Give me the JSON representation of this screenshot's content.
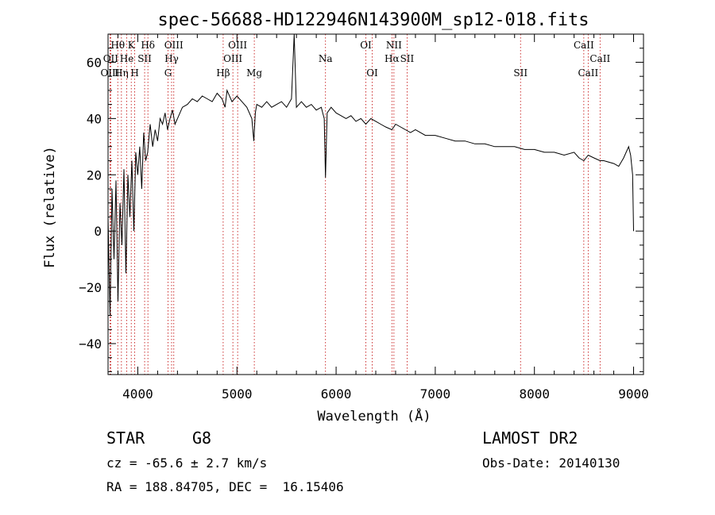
{
  "chart_data": {
    "type": "line",
    "title": "spec-56688-HD122946N143900M_sp12-018.fits",
    "xlabel": "Wavelength (Å)",
    "ylabel": "Flux (relative)",
    "xlim": [
      3700,
      9100
    ],
    "ylim": [
      -51,
      70
    ],
    "x_ticks": [
      4000,
      5000,
      6000,
      7000,
      8000,
      9000
    ],
    "y_ticks": [
      -40,
      -20,
      0,
      20,
      40,
      60
    ],
    "grid": false,
    "legend": "none",
    "series": [
      {
        "color": "#000000",
        "x": [
          3700,
          3720,
          3740,
          3760,
          3780,
          3800,
          3820,
          3840,
          3860,
          3880,
          3900,
          3920,
          3940,
          3960,
          3980,
          4000,
          4020,
          4040,
          4060,
          4080,
          4100,
          4125,
          4150,
          4175,
          4200,
          4225,
          4250,
          4275,
          4300,
          4325,
          4350,
          4375,
          4400,
          4450,
          4500,
          4550,
          4600,
          4650,
          4700,
          4750,
          4800,
          4850,
          4880,
          4900,
          4950,
          5000,
          5050,
          5100,
          5150,
          5170,
          5185,
          5200,
          5250,
          5300,
          5350,
          5400,
          5450,
          5500,
          5550,
          5577,
          5600,
          5650,
          5700,
          5750,
          5800,
          5850,
          5880,
          5893,
          5910,
          5950,
          6000,
          6050,
          6100,
          6150,
          6200,
          6250,
          6300,
          6350,
          6400,
          6450,
          6500,
          6563,
          6600,
          6650,
          6700,
          6750,
          6800,
          6900,
          7000,
          7100,
          7200,
          7300,
          7400,
          7500,
          7600,
          7700,
          7800,
          7900,
          8000,
          8100,
          8200,
          8300,
          8400,
          8450,
          8498,
          8542,
          8600,
          8662,
          8700,
          8800,
          8850,
          8900,
          8950,
          8970,
          8990,
          9000
        ],
        "y": [
          5,
          -30,
          15,
          -10,
          18,
          -25,
          10,
          -5,
          22,
          -15,
          20,
          5,
          25,
          0,
          28,
          20,
          30,
          15,
          35,
          25,
          28,
          38,
          30,
          36,
          32,
          40,
          38,
          42,
          36,
          40,
          43,
          38,
          40,
          44,
          45,
          47,
          46,
          48,
          47,
          46,
          49,
          47,
          44,
          50,
          46,
          48,
          46,
          44,
          40,
          32,
          42,
          45,
          44,
          46,
          44,
          45,
          46,
          44,
          47,
          70,
          44,
          46,
          44,
          45,
          43,
          44,
          40,
          19,
          42,
          44,
          42,
          41,
          40,
          41,
          39,
          40,
          38,
          40,
          39,
          38,
          37,
          36,
          38,
          37,
          36,
          35,
          36,
          34,
          34,
          33,
          32,
          32,
          31,
          31,
          30,
          30,
          30,
          29,
          29,
          28,
          28,
          27,
          28,
          26,
          25,
          27,
          26,
          25,
          25,
          24,
          23,
          26,
          30,
          27,
          20,
          0
        ]
      }
    ],
    "line_markers": [
      {
        "name": "Hθ",
        "wavelength": 3798,
        "row": 1
      },
      {
        "name": "OII",
        "wavelength": 3727,
        "row": 2
      },
      {
        "name": "OIII",
        "wavelength": 3720,
        "row": 3
      },
      {
        "name": "K",
        "wavelength": 3934,
        "row": 1
      },
      {
        "name": "He",
        "wavelength": 3889,
        "row": 2
      },
      {
        "name": "Hη",
        "wavelength": 3835,
        "row": 3
      },
      {
        "name": "SII",
        "wavelength": 4069,
        "row": 2
      },
      {
        "name": "H",
        "wavelength": 3969,
        "row": 3
      },
      {
        "name": "Hδ",
        "wavelength": 4102,
        "row": 1
      },
      {
        "name": "OIII",
        "wavelength": 4363,
        "row": 1
      },
      {
        "name": "Hγ",
        "wavelength": 4341,
        "row": 2
      },
      {
        "name": "G",
        "wavelength": 4305,
        "row": 3
      },
      {
        "name": "Hβ",
        "wavelength": 4861,
        "row": 3
      },
      {
        "name": "OIII",
        "wavelength": 5007,
        "row": 1
      },
      {
        "name": "OIII",
        "wavelength": 4959,
        "row": 2
      },
      {
        "name": "Mg",
        "wavelength": 5175,
        "row": 3
      },
      {
        "name": "Na",
        "wavelength": 5893,
        "row": 2
      },
      {
        "name": "OI",
        "wavelength": 6300,
        "row": 1
      },
      {
        "name": "OI",
        "wavelength": 6364,
        "row": 3
      },
      {
        "name": "NII",
        "wavelength": 6583,
        "row": 1
      },
      {
        "name": "Hα",
        "wavelength": 6563,
        "row": 2
      },
      {
        "name": "SII",
        "wavelength": 6716,
        "row": 2
      },
      {
        "name": "SII",
        "wavelength": 7860,
        "row": 3
      },
      {
        "name": "CaII",
        "wavelength": 8498,
        "row": 1
      },
      {
        "name": "CaII",
        "wavelength": 8662,
        "row": 2
      },
      {
        "name": "CaII",
        "wavelength": 8542,
        "row": 3
      }
    ]
  },
  "info": {
    "object_class": "STAR",
    "subclass": "G8",
    "survey": "LAMOST DR2",
    "redshift": "cz = -65.6 ± 2.7 km/s",
    "obs_date": "Obs-Date: 20140130",
    "coords": "RA = 188.84705, DEC =  16.15406"
  },
  "colors": {
    "spectrum": "#000000",
    "line_marker": "#c00000"
  }
}
